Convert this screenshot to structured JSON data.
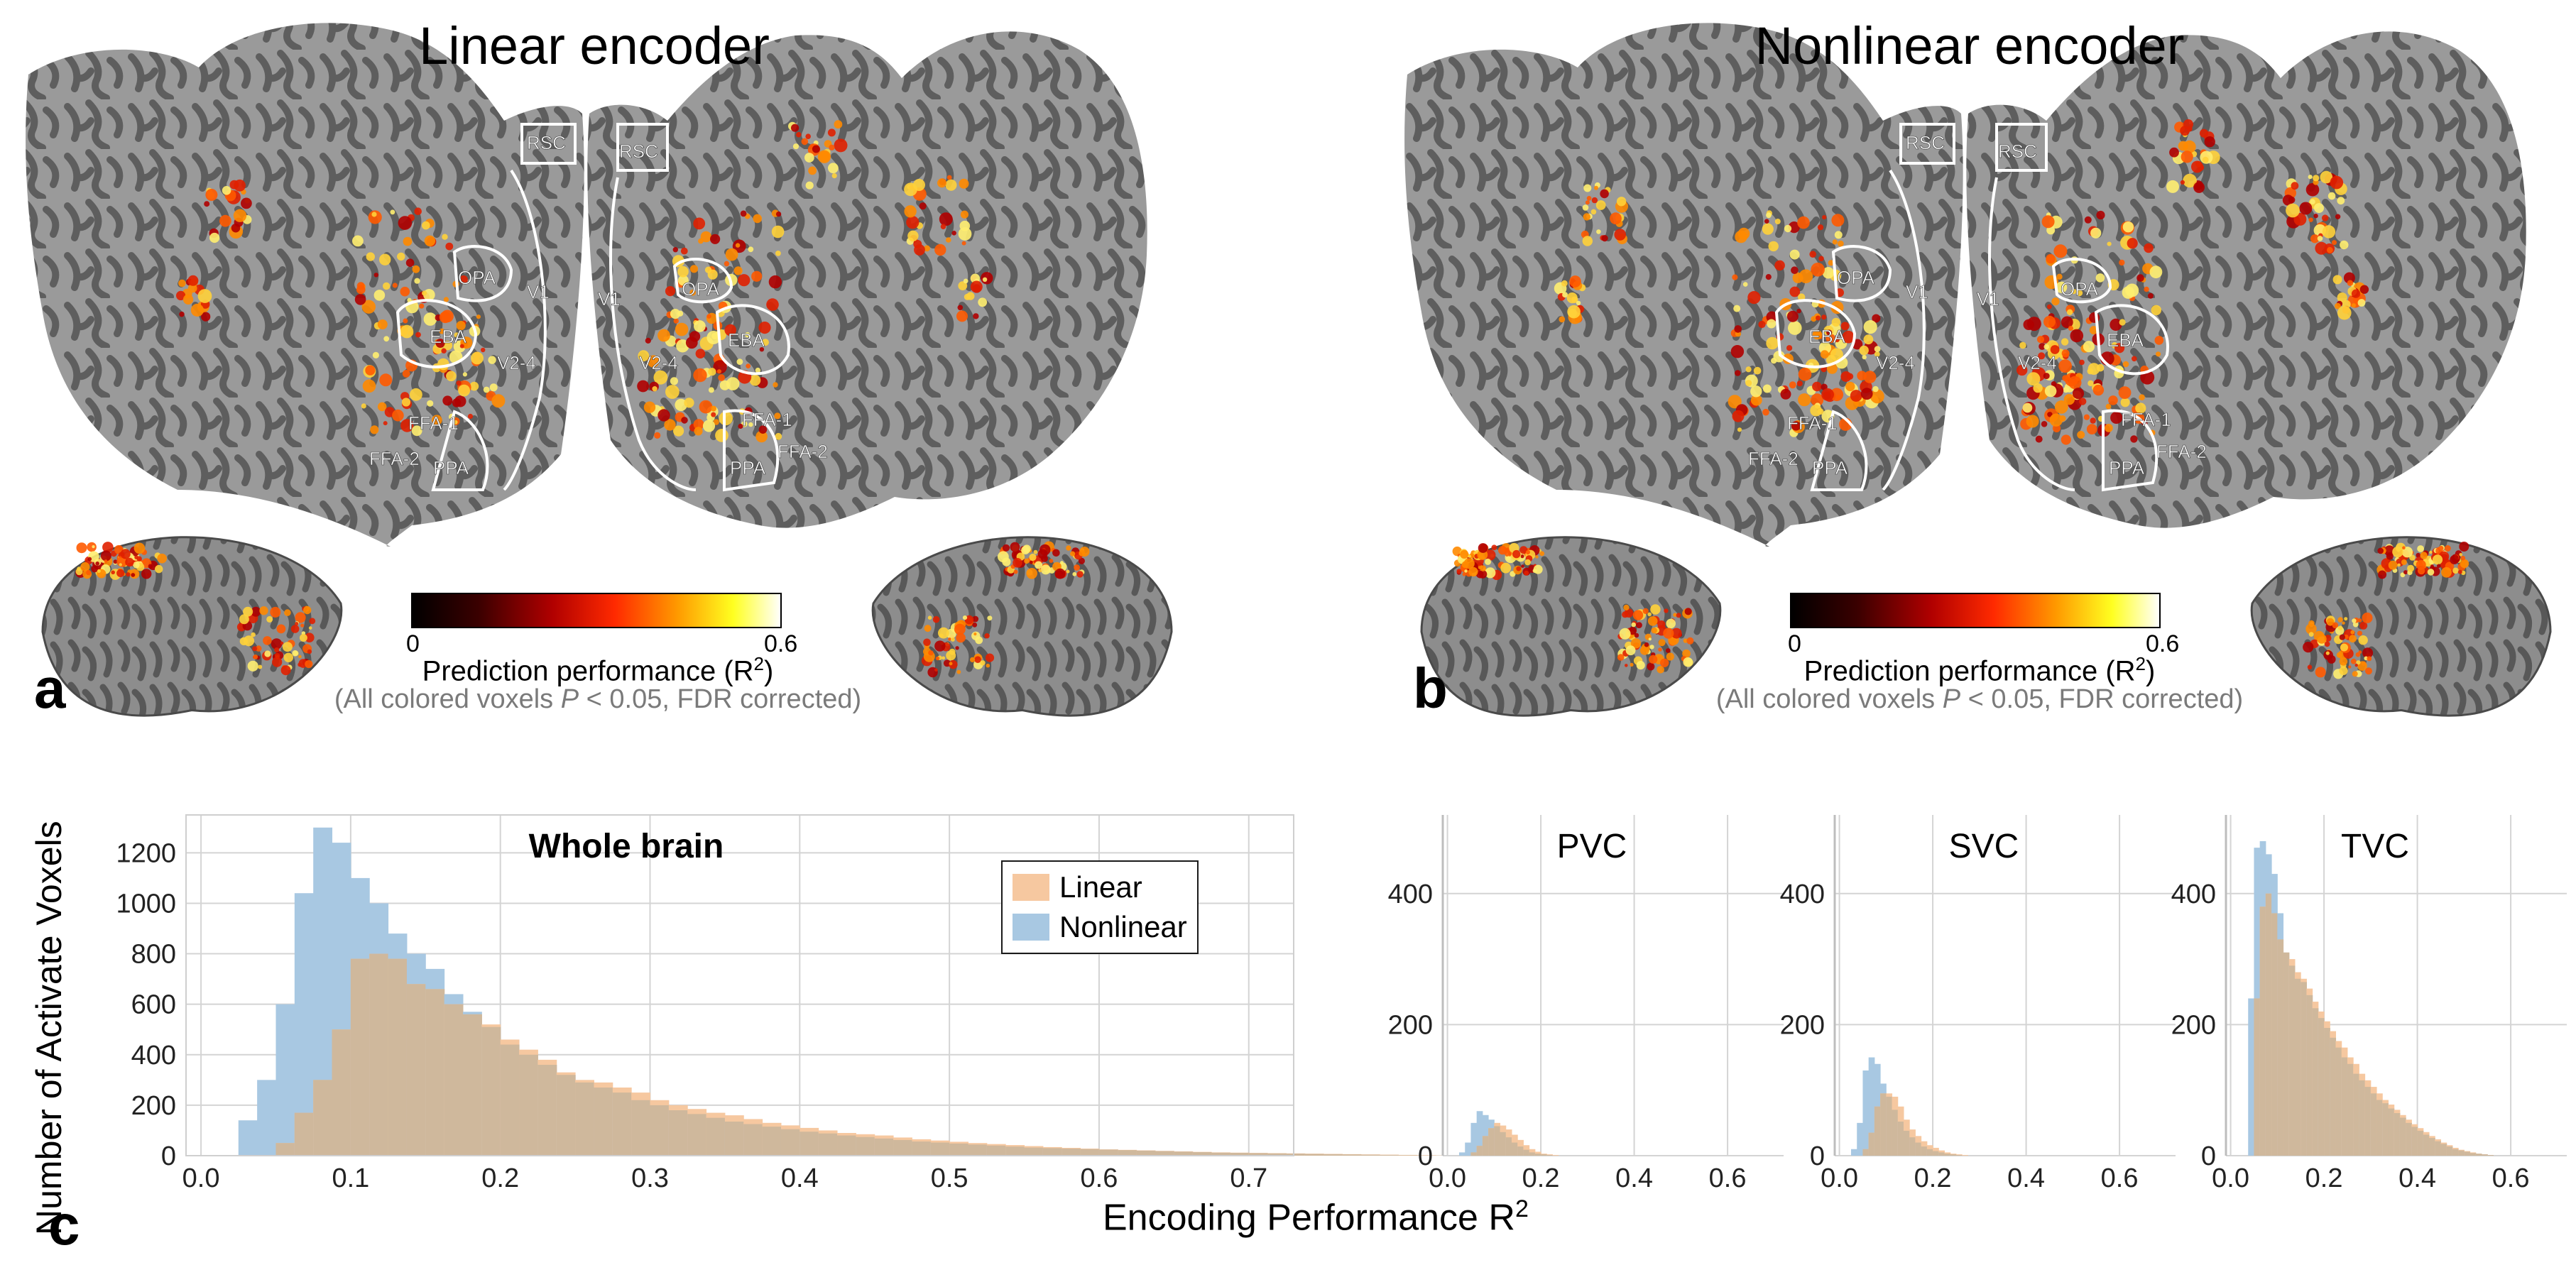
{
  "panel_a": {
    "letter": "a",
    "title": "Linear encoder",
    "roi_labels": [
      "RSC",
      "OPA",
      "EBA",
      "V1",
      "V2-4",
      "FFA-1",
      "FFA-2",
      "PPA",
      "RSC",
      "OPA",
      "EBA",
      "V1",
      "V2-4",
      "FFA-1",
      "FFA-2",
      "PPA"
    ],
    "colorbar": {
      "min_label": "0",
      "max_label": "0.6",
      "title": "Prediction performance (R",
      "title_sup": "2",
      "title_end": ")",
      "note_pre": "(All colored voxels ",
      "note_p": "P",
      "note_post": " < 0.05, FDR corrected)"
    }
  },
  "panel_b": {
    "letter": "b",
    "title": "Nonlinear encoder",
    "roi_labels": [
      "RSC",
      "OPA",
      "EBA",
      "V1",
      "V2-4",
      "FFA-1",
      "FFA-2",
      "PPA",
      "RSC",
      "OPA",
      "EBA",
      "V1",
      "V2-4",
      "FFA-1",
      "FFA-2",
      "PPA"
    ],
    "colorbar": {
      "min_label": "0",
      "max_label": "0.6",
      "title": "Prediction performance (R",
      "title_sup": "2",
      "title_end": ")",
      "note_pre": "(All colored voxels ",
      "note_p": "P",
      "note_post": " < 0.05, FDR corrected)"
    }
  },
  "panel_c": {
    "letter": "c",
    "ylabel": "Number of Activate Voxels",
    "xlabel": "Encoding Performance R",
    "xlabel_sup": "2"
  },
  "colors": {
    "linear": "#f6c8a0",
    "nonlinear": "#a8c8e2",
    "overlap": "#cfb89c",
    "cortex_light": "#9a9a9a",
    "cortex_dark": "#5e5e5e",
    "grid": "#d4d4d4"
  },
  "chart_data": [
    {
      "type": "bar",
      "title": "Whole brain",
      "legend": [
        "Linear",
        "Nonlinear"
      ],
      "legend_position": "top-right",
      "xlim": [
        -0.01,
        0.73
      ],
      "ylim": [
        0,
        1350
      ],
      "xticks": [
        0.0,
        0.1,
        0.2,
        0.3,
        0.4,
        0.5,
        0.6,
        0.7
      ],
      "xtick_labels": [
        "0.0",
        "0.1",
        "0.2",
        "0.3",
        "0.4",
        "0.5",
        "0.6",
        "0.7"
      ],
      "yticks": [
        0,
        200,
        400,
        600,
        800,
        1000,
        1200
      ],
      "ytick_labels": [
        "0",
        "200",
        "400",
        "600",
        "800",
        "1000",
        "1200"
      ],
      "bin_start": 0.0,
      "bin_width": 0.0125,
      "series": [
        {
          "name": "Linear",
          "values": [
            0,
            0,
            0,
            0,
            50,
            170,
            300,
            500,
            780,
            800,
            780,
            680,
            660,
            600,
            560,
            520,
            460,
            420,
            380,
            330,
            300,
            290,
            270,
            250,
            220,
            200,
            185,
            170,
            160,
            145,
            130,
            120,
            110,
            100,
            90,
            85,
            80,
            72,
            65,
            60,
            55,
            50,
            46,
            42,
            38,
            34,
            31,
            28,
            25,
            23,
            21,
            19,
            17,
            15,
            13,
            12,
            11,
            10,
            9,
            8,
            7,
            6,
            5,
            4,
            3,
            2,
            1,
            1,
            1,
            0
          ]
        },
        {
          "name": "Nonlinear",
          "values": [
            0,
            0,
            140,
            300,
            600,
            1040,
            1300,
            1240,
            1100,
            1000,
            880,
            800,
            740,
            640,
            570,
            510,
            440,
            400,
            360,
            320,
            290,
            270,
            250,
            220,
            200,
            180,
            165,
            150,
            135,
            125,
            115,
            105,
            95,
            88,
            80,
            74,
            68,
            62,
            56,
            52,
            48,
            44,
            40,
            36,
            32,
            30,
            28,
            26,
            24,
            22,
            20,
            18,
            16,
            14,
            12,
            11,
            10,
            9,
            8,
            7,
            6,
            5,
            4,
            3,
            2,
            1,
            1,
            0,
            0,
            0
          ]
        }
      ]
    },
    {
      "type": "bar",
      "title": "PVC",
      "xlim": [
        -0.01,
        0.72
      ],
      "ylim": [
        0,
        520
      ],
      "xticks": [
        0.0,
        0.2,
        0.4,
        0.6
      ],
      "xtick_labels": [
        "0.0",
        "0.2",
        "0.4",
        "0.6"
      ],
      "yticks": [
        0,
        200,
        400
      ],
      "ytick_labels": [
        "0",
        "200",
        "400"
      ],
      "bin_start": 0.0,
      "bin_width": 0.0125,
      "series": [
        {
          "name": "Linear",
          "values": [
            0,
            0,
            0,
            0,
            5,
            15,
            30,
            42,
            50,
            46,
            40,
            32,
            24,
            16,
            10,
            6,
            3,
            2,
            1,
            0
          ]
        },
        {
          "name": "Nonlinear",
          "values": [
            0,
            0,
            5,
            20,
            50,
            68,
            62,
            55,
            45,
            36,
            28,
            20,
            14,
            9,
            5,
            3,
            2,
            1,
            0,
            0
          ]
        }
      ]
    },
    {
      "type": "bar",
      "title": "SVC",
      "xlim": [
        -0.01,
        0.72
      ],
      "ylim": [
        0,
        520
      ],
      "xticks": [
        0.0,
        0.2,
        0.4,
        0.6
      ],
      "xtick_labels": [
        "0.0",
        "0.2",
        "0.4",
        "0.6"
      ],
      "yticks": [
        0,
        200,
        400
      ],
      "ytick_labels": [
        "0",
        "200",
        "400"
      ],
      "bin_start": 0.0,
      "bin_width": 0.0125,
      "series": [
        {
          "name": "Linear",
          "values": [
            0,
            0,
            0,
            0,
            10,
            35,
            75,
            95,
            95,
            90,
            75,
            55,
            40,
            30,
            22,
            16,
            12,
            8,
            5,
            3,
            2,
            1,
            0
          ]
        },
        {
          "name": "Nonlinear",
          "values": [
            0,
            0,
            10,
            50,
            130,
            150,
            140,
            110,
            90,
            70,
            52,
            38,
            28,
            20,
            14,
            10,
            7,
            5,
            3,
            2,
            1,
            0,
            0
          ]
        }
      ]
    },
    {
      "type": "bar",
      "title": "TVC",
      "xlim": [
        -0.01,
        0.72
      ],
      "ylim": [
        0,
        520
      ],
      "xticks": [
        0.0,
        0.2,
        0.4,
        0.6
      ],
      "xtick_labels": [
        "0.0",
        "0.2",
        "0.4",
        "0.6"
      ],
      "yticks": [
        0,
        200,
        400
      ],
      "ytick_labels": [
        "0",
        "200",
        "400"
      ],
      "bin_start": 0.0,
      "bin_width": 0.0125,
      "series": [
        {
          "name": "Linear",
          "values": [
            0,
            0,
            0,
            0,
            240,
            380,
            400,
            370,
            330,
            310,
            300,
            280,
            270,
            255,
            235,
            220,
            205,
            190,
            175,
            165,
            150,
            140,
            125,
            115,
            105,
            95,
            85,
            78,
            70,
            62,
            55,
            48,
            42,
            36,
            30,
            25,
            20,
            16,
            12,
            9,
            7,
            5,
            3,
            2,
            1,
            0
          ]
        },
        {
          "name": "Nonlinear",
          "values": [
            0,
            0,
            0,
            240,
            470,
            480,
            460,
            430,
            370,
            310,
            290,
            270,
            265,
            245,
            225,
            210,
            195,
            180,
            165,
            150,
            140,
            125,
            115,
            105,
            95,
            85,
            80,
            72,
            65,
            58,
            50,
            44,
            38,
            32,
            27,
            22,
            18,
            14,
            10,
            8,
            6,
            4,
            3,
            2,
            1,
            0
          ]
        }
      ]
    }
  ]
}
